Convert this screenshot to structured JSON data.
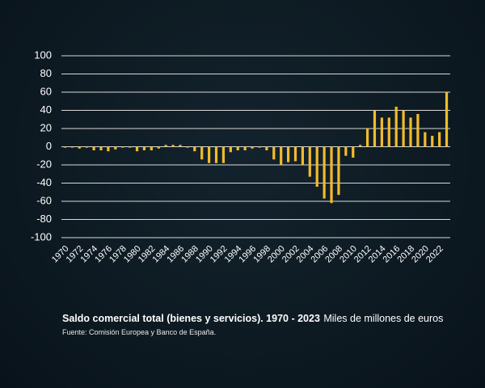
{
  "chart_data": {
    "type": "bar",
    "title": "Saldo comercial total (bienes y servicios). 1970 - 2023",
    "subtitle": "Miles de millones de euros",
    "source": "Fuente: Comisión Europea y Banco de España.",
    "categories": [
      "1970",
      null,
      "1972",
      null,
      "1974",
      null,
      "1976",
      null,
      "1978",
      null,
      "1980",
      null,
      "1982",
      null,
      "1984",
      null,
      "1986",
      null,
      "1988",
      null,
      "1990",
      null,
      "1992",
      null,
      "1994",
      null,
      "1996",
      null,
      "1998",
      null,
      "2000",
      null,
      "2002",
      null,
      "2004",
      null,
      "2006",
      null,
      "2008",
      null,
      "2010",
      null,
      "2012",
      null,
      "2014",
      null,
      "2016",
      null,
      "2018",
      null,
      "2020",
      null,
      "2022",
      null
    ],
    "values": [
      -1,
      -1,
      -2,
      -1,
      -4,
      -4,
      -5,
      -3,
      -1,
      -1,
      -5,
      -4,
      -4,
      -2,
      2,
      2,
      2,
      -1,
      -5,
      -14,
      -18,
      -18,
      -18,
      -6,
      -4,
      -4,
      -2,
      -1,
      -4,
      -14,
      -20,
      -17,
      -16,
      -20,
      -33,
      -44,
      -57,
      -62,
      -53,
      -10,
      -12,
      2,
      20,
      40,
      32,
      32,
      44,
      40,
      32,
      36,
      16,
      12,
      16,
      60
    ],
    "color": "#f2bb2c",
    "ylim": [
      -100,
      100
    ],
    "yticks": [
      -100,
      -80,
      -60,
      -40,
      -20,
      0,
      20,
      40,
      60,
      80,
      100
    ],
    "grid": true
  }
}
